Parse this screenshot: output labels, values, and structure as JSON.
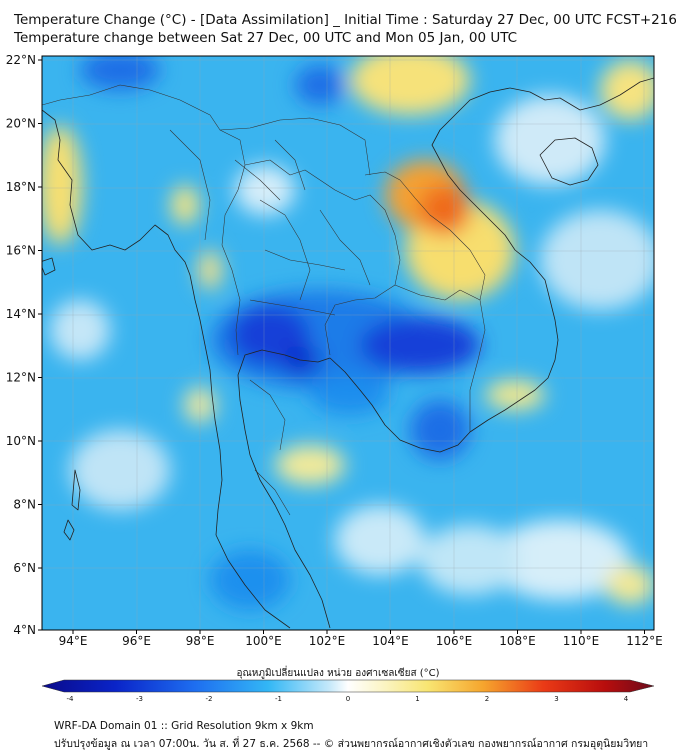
{
  "title_line1": "Temperature Change (°C) - [Data Assimilation] _ Initial Time : Saturday 27 Dec, 00 UTC FCST+216",
  "title_line2": "Temperature change between Sat 27 Dec, 00 UTC and Mon 05 Jan, 00 UTC",
  "lat_labels": [
    "22°N",
    "20°N",
    "18°N",
    "16°N",
    "14°N",
    "12°N",
    "10°N",
    "8°N",
    "6°N",
    "4°N"
  ],
  "lon_labels": [
    "94°E",
    "96°E",
    "98°E",
    "100°E",
    "102°E",
    "104°E",
    "106°E",
    "108°E",
    "110°E",
    "112°E"
  ],
  "colorbar": {
    "title": "อุณหภูมิเปลี่ยนแปลง หน่วย องศาเซลเซียส (°C)",
    "ticks": [
      "-4",
      "-3",
      "-2",
      "-1",
      "0",
      "1",
      "2",
      "3",
      "4"
    ],
    "min": -4,
    "max": 4
  },
  "footer_line1": "WRF-DA Domain 01 :: Grid Resolution 9km x 9km",
  "footer_line2": "ปรับปรุงข้อมูล ณ เวลา 07:00น. วัน ส. ที่ 27 ธ.ค. 2568 -- © ส่วนพยากรณ์อากาศเชิงตัวเลข กองพยากรณ์อากาศ กรมอุตุนิยมวิทยา",
  "colors": {
    "cold_deep": "#1030d8",
    "cold": "#1a86ee",
    "cool": "#2fb8f4",
    "near_zero": "#e8f4fb",
    "warm": "#f5e67a",
    "warm_orange": "#f7a630",
    "hot": "#f05a18"
  }
}
